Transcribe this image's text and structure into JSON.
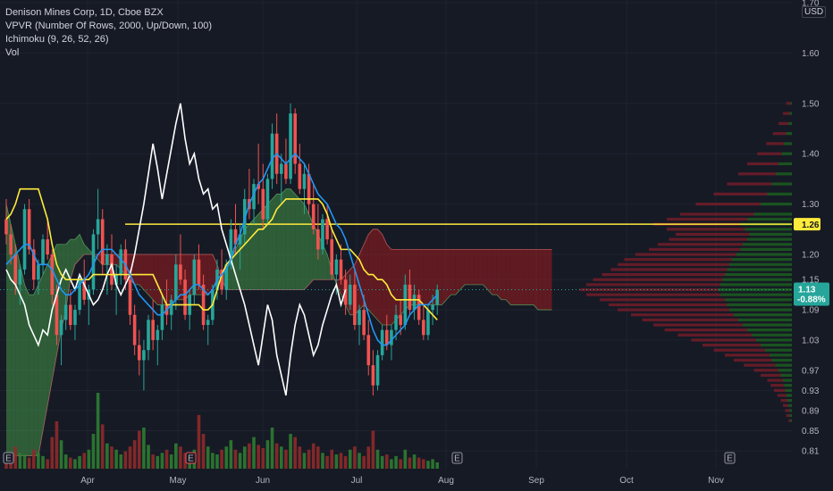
{
  "legend": {
    "title": "Denison Mines Corp, 1D, Cboe BZX",
    "vpvr": "VPVR (Number Of Rows, 2000, Up/Down, 100)",
    "ichimoku": "Ichimoku (9, 26, 52, 26)",
    "vol": "Vol"
  },
  "currency_label": "USD",
  "colors": {
    "background": "#161a25",
    "up": "#26a69a",
    "down": "#ef5350",
    "conversion_line": "#2196f3",
    "base_line": "#ffeb3b",
    "lagging_span": "#ffffff",
    "horizontal_line": "#ffeb3b",
    "cloud_up": "#4caf50",
    "cloud_down": "#b71c1c",
    "vp_up": "#1b5e20",
    "vp_down": "#7f1d2a",
    "grid": "#1f2330"
  },
  "icons": [
    "earnings-marker-icon"
  ],
  "chart_data": {
    "type": "candlestick",
    "symbol": "Denison Mines Corp",
    "interval": "1D",
    "exchange": "Cboe BZX",
    "x_ticks": [
      "Apr",
      "May",
      "Jun",
      "Jul",
      "Aug",
      "Sep",
      "Oct",
      "Nov"
    ],
    "y_ticks": [
      "1.70",
      "1.60",
      "1.50",
      "1.40",
      "1.30",
      "1.20",
      "1.15",
      "1.09",
      "1.03",
      "0.97",
      "0.93",
      "0.89",
      "0.85",
      "0.81"
    ],
    "ylim": [
      0.8,
      1.7
    ],
    "grid": true,
    "last_price": "1.13",
    "last_change": "-0.88%",
    "horizontal_line_price": "1.26",
    "earnings_markers": [
      "E",
      "E",
      "E",
      "E",
      "E"
    ],
    "ohlc": [
      [
        1.27,
        1.31,
        1.22,
        1.24
      ],
      [
        1.24,
        1.26,
        1.18,
        1.2
      ],
      [
        1.2,
        1.22,
        1.12,
        1.14
      ],
      [
        1.14,
        1.18,
        1.1,
        1.17
      ],
      [
        1.17,
        1.3,
        1.16,
        1.29
      ],
      [
        1.29,
        1.31,
        1.2,
        1.21
      ],
      [
        1.21,
        1.23,
        1.13,
        1.15
      ],
      [
        1.15,
        1.19,
        1.12,
        1.18
      ],
      [
        1.18,
        1.24,
        1.16,
        1.23
      ],
      [
        1.23,
        1.27,
        1.19,
        1.2
      ],
      [
        1.2,
        1.21,
        1.1,
        1.12
      ],
      [
        1.12,
        1.14,
        1.02,
        1.04
      ],
      [
        1.04,
        1.08,
        0.98,
        1.07
      ],
      [
        1.07,
        1.12,
        1.05,
        1.1
      ],
      [
        1.1,
        1.13,
        1.05,
        1.06
      ],
      [
        1.06,
        1.1,
        1.03,
        1.09
      ],
      [
        1.09,
        1.16,
        1.08,
        1.15
      ],
      [
        1.15,
        1.19,
        1.1,
        1.11
      ],
      [
        1.11,
        1.14,
        1.06,
        1.13
      ],
      [
        1.13,
        1.25,
        1.12,
        1.24
      ],
      [
        1.24,
        1.33,
        1.21,
        1.27
      ],
      [
        1.27,
        1.29,
        1.16,
        1.18
      ],
      [
        1.18,
        1.22,
        1.12,
        1.2
      ],
      [
        1.2,
        1.24,
        1.13,
        1.14
      ],
      [
        1.14,
        1.18,
        1.08,
        1.16
      ],
      [
        1.16,
        1.22,
        1.14,
        1.21
      ],
      [
        1.21,
        1.23,
        1.13,
        1.15
      ],
      [
        1.15,
        1.17,
        1.06,
        1.08
      ],
      [
        1.08,
        1.1,
        1.0,
        1.02
      ],
      [
        1.02,
        1.05,
        0.96,
        0.99
      ],
      [
        0.99,
        1.03,
        0.93,
        1.01
      ],
      [
        1.01,
        1.08,
        0.99,
        1.07
      ],
      [
        1.07,
        1.11,
        1.01,
        1.03
      ],
      [
        1.03,
        1.06,
        0.98,
        1.05
      ],
      [
        1.05,
        1.12,
        1.03,
        1.1
      ],
      [
        1.1,
        1.15,
        1.06,
        1.08
      ],
      [
        1.08,
        1.12,
        1.05,
        1.11
      ],
      [
        1.11,
        1.2,
        1.09,
        1.18
      ],
      [
        1.18,
        1.24,
        1.14,
        1.15
      ],
      [
        1.15,
        1.17,
        1.07,
        1.08
      ],
      [
        1.08,
        1.13,
        1.05,
        1.12
      ],
      [
        1.12,
        1.2,
        1.1,
        1.19
      ],
      [
        1.19,
        1.22,
        1.13,
        1.14
      ],
      [
        1.14,
        1.16,
        1.05,
        1.06
      ],
      [
        1.06,
        1.08,
        1.02,
        1.07
      ],
      [
        1.07,
        1.14,
        1.06,
        1.13
      ],
      [
        1.13,
        1.19,
        1.11,
        1.17
      ],
      [
        1.17,
        1.21,
        1.12,
        1.13
      ],
      [
        1.13,
        1.19,
        1.11,
        1.18
      ],
      [
        1.18,
        1.27,
        1.17,
        1.25
      ],
      [
        1.25,
        1.3,
        1.2,
        1.22
      ],
      [
        1.22,
        1.26,
        1.17,
        1.24
      ],
      [
        1.24,
        1.33,
        1.22,
        1.31
      ],
      [
        1.31,
        1.37,
        1.27,
        1.29
      ],
      [
        1.29,
        1.35,
        1.26,
        1.34
      ],
      [
        1.34,
        1.42,
        1.3,
        1.33
      ],
      [
        1.33,
        1.38,
        1.25,
        1.27
      ],
      [
        1.27,
        1.36,
        1.26,
        1.35
      ],
      [
        1.35,
        1.46,
        1.33,
        1.44
      ],
      [
        1.44,
        1.48,
        1.34,
        1.36
      ],
      [
        1.36,
        1.4,
        1.3,
        1.38
      ],
      [
        1.38,
        1.43,
        1.34,
        1.35
      ],
      [
        1.35,
        1.5,
        1.34,
        1.48
      ],
      [
        1.48,
        1.49,
        1.36,
        1.38
      ],
      [
        1.38,
        1.42,
        1.32,
        1.33
      ],
      [
        1.33,
        1.38,
        1.28,
        1.36
      ],
      [
        1.36,
        1.38,
        1.28,
        1.3
      ],
      [
        1.3,
        1.34,
        1.24,
        1.25
      ],
      [
        1.25,
        1.3,
        1.19,
        1.21
      ],
      [
        1.21,
        1.28,
        1.2,
        1.27
      ],
      [
        1.27,
        1.3,
        1.22,
        1.23
      ],
      [
        1.23,
        1.25,
        1.15,
        1.16
      ],
      [
        1.16,
        1.2,
        1.12,
        1.19
      ],
      [
        1.19,
        1.22,
        1.14,
        1.15
      ],
      [
        1.15,
        1.17,
        1.08,
        1.1
      ],
      [
        1.1,
        1.16,
        1.09,
        1.14
      ],
      [
        1.14,
        1.17,
        1.05,
        1.06
      ],
      [
        1.06,
        1.1,
        1.02,
        1.09
      ],
      [
        1.09,
        1.12,
        1.03,
        1.04
      ],
      [
        1.04,
        1.07,
        0.96,
        0.98
      ],
      [
        0.98,
        1.01,
        0.92,
        0.94
      ],
      [
        0.94,
        1.01,
        0.93,
        1.0
      ],
      [
        1.0,
        1.06,
        0.99,
        1.05
      ],
      [
        1.05,
        1.08,
        1.01,
        1.02
      ],
      [
        1.02,
        1.06,
        0.99,
        1.05
      ],
      [
        1.05,
        1.1,
        1.03,
        1.08
      ],
      [
        1.08,
        1.11,
        1.04,
        1.06
      ],
      [
        1.06,
        1.16,
        1.05,
        1.14
      ],
      [
        1.14,
        1.17,
        1.08,
        1.09
      ],
      [
        1.09,
        1.14,
        1.07,
        1.12
      ],
      [
        1.12,
        1.13,
        1.06,
        1.07
      ],
      [
        1.07,
        1.1,
        1.03,
        1.04
      ],
      [
        1.04,
        1.1,
        1.03,
        1.09
      ],
      [
        1.09,
        1.12,
        1.06,
        1.1
      ],
      [
        1.1,
        1.14,
        1.08,
        1.13
      ]
    ],
    "volume": [
      8,
      6,
      14,
      10,
      9,
      7,
      12,
      10,
      8,
      6,
      20,
      30,
      18,
      9,
      7,
      6,
      8,
      10,
      12,
      22,
      48,
      28,
      16,
      14,
      12,
      9,
      11,
      14,
      18,
      24,
      26,
      15,
      9,
      8,
      10,
      12,
      9,
      16,
      14,
      10,
      8,
      12,
      34,
      22,
      14,
      10,
      9,
      12,
      14,
      18,
      12,
      10,
      14,
      16,
      20,
      15,
      13,
      18,
      26,
      16,
      14,
      12,
      22,
      20,
      14,
      10,
      12,
      16,
      14,
      10,
      8,
      12,
      9,
      10,
      8,
      12,
      14,
      10,
      8,
      14,
      24,
      12,
      8,
      9,
      6,
      8,
      6,
      12,
      7,
      9,
      7,
      6,
      5,
      6,
      4
    ],
    "tenkan": [
      1.18,
      1.19,
      1.2,
      1.21,
      1.22,
      1.22,
      1.2,
      1.18,
      1.18,
      1.18,
      1.17,
      1.15,
      1.13,
      1.12,
      1.12,
      1.13,
      1.14,
      1.15,
      1.16,
      1.18,
      1.2,
      1.21,
      1.21,
      1.21,
      1.2,
      1.19,
      1.18,
      1.16,
      1.14,
      1.12,
      1.11,
      1.1,
      1.09,
      1.08,
      1.08,
      1.09,
      1.1,
      1.11,
      1.12,
      1.12,
      1.13,
      1.14,
      1.14,
      1.13,
      1.12,
      1.13,
      1.15,
      1.16,
      1.17,
      1.19,
      1.22,
      1.24,
      1.27,
      1.3,
      1.32,
      1.34,
      1.35,
      1.37,
      1.39,
      1.4,
      1.39,
      1.38,
      1.39,
      1.4,
      1.39,
      1.38,
      1.36,
      1.34,
      1.32,
      1.31,
      1.3,
      1.28,
      1.26,
      1.25,
      1.23,
      1.2,
      1.17,
      1.14,
      1.11,
      1.08,
      1.05,
      1.03,
      1.02,
      1.02,
      1.03,
      1.04,
      1.05,
      1.06,
      1.08,
      1.09,
      1.1,
      1.1,
      1.1,
      1.11,
      1.12
    ],
    "kijun": [
      1.27,
      1.28,
      1.3,
      1.33,
      1.33,
      1.33,
      1.33,
      1.33,
      1.3,
      1.27,
      1.22,
      1.18,
      1.16,
      1.15,
      1.15,
      1.15,
      1.15,
      1.15,
      1.15,
      1.16,
      1.16,
      1.16,
      1.16,
      1.16,
      1.16,
      1.16,
      1.16,
      1.16,
      1.16,
      1.16,
      1.16,
      1.16,
      1.16,
      1.14,
      1.12,
      1.1,
      1.1,
      1.1,
      1.1,
      1.1,
      1.1,
      1.1,
      1.1,
      1.09,
      1.09,
      1.1,
      1.13,
      1.16,
      1.18,
      1.19,
      1.2,
      1.21,
      1.22,
      1.23,
      1.24,
      1.25,
      1.25,
      1.26,
      1.27,
      1.29,
      1.3,
      1.31,
      1.31,
      1.31,
      1.31,
      1.31,
      1.31,
      1.31,
      1.31,
      1.3,
      1.28,
      1.25,
      1.23,
      1.21,
      1.21,
      1.21,
      1.2,
      1.19,
      1.17,
      1.16,
      1.16,
      1.15,
      1.15,
      1.14,
      1.12,
      1.11,
      1.11,
      1.11,
      1.11,
      1.11,
      1.11,
      1.1,
      1.09,
      1.08,
      1.07
    ],
    "chikou": [
      1.17,
      1.15,
      1.14,
      1.12,
      1.1,
      1.06,
      1.04,
      1.02,
      1.05,
      1.04,
      1.09,
      1.12,
      1.15,
      1.17,
      1.15,
      1.13,
      1.16,
      1.14,
      1.12,
      1.1,
      1.11,
      1.13,
      1.16,
      1.18,
      1.14,
      1.12,
      1.14,
      1.16,
      1.2,
      1.25,
      1.3,
      1.36,
      1.42,
      1.37,
      1.31,
      1.36,
      1.41,
      1.46,
      1.5,
      1.43,
      1.38,
      1.4,
      1.35,
      1.32,
      1.33,
      1.29,
      1.3,
      1.25,
      1.22,
      1.19,
      1.16,
      1.13,
      1.1,
      1.06,
      1.02,
      0.98,
      1.04,
      1.1,
      1.07,
      1.0,
      0.96,
      0.92,
      1.0,
      1.06,
      1.1,
      1.08,
      1.04,
      1.0,
      1.02,
      1.06,
      1.09,
      1.12,
      1.14,
      1.1,
      1.13
    ],
    "senkou_a": [
      1.3,
      1.26,
      1.22,
      1.18,
      1.14,
      1.12,
      1.12,
      1.14,
      1.16,
      1.18,
      1.2,
      1.22,
      1.22,
      1.22,
      1.23,
      1.23,
      1.24,
      1.22,
      1.21,
      1.2,
      1.19,
      1.18,
      1.18,
      1.18,
      1.18,
      1.17,
      1.16,
      1.15,
      1.14,
      1.14,
      1.13,
      1.12,
      1.11,
      1.1,
      1.1,
      1.1,
      1.1,
      1.11,
      1.11,
      1.11,
      1.12,
      1.12,
      1.12,
      1.12,
      1.12,
      1.13,
      1.15,
      1.16,
      1.17,
      1.19,
      1.21,
      1.23,
      1.25,
      1.26,
      1.27,
      1.28,
      1.29,
      1.3,
      1.31,
      1.32,
      1.32,
      1.33,
      1.33,
      1.32,
      1.31,
      1.3,
      1.28,
      1.26,
      1.24,
      1.22,
      1.2,
      1.17,
      1.14,
      1.12,
      1.1,
      1.08,
      1.08,
      1.09,
      1.1,
      1.09,
      1.08,
      1.07,
      1.06,
      1.06,
      1.06,
      1.07,
      1.08,
      1.09,
      1.1,
      1.1,
      1.1,
      1.1,
      1.1,
      1.1,
      1.1,
      1.1,
      1.11,
      1.12,
      1.12,
      1.13,
      1.14,
      1.14,
      1.14,
      1.14,
      1.14,
      1.13,
      1.12,
      1.12,
      1.11,
      1.11,
      1.1,
      1.1,
      1.1,
      1.1,
      1.1,
      1.1,
      1.09,
      1.09,
      1.09,
      1.09
    ],
    "senkou_b": [
      0.8,
      0.8,
      0.8,
      0.8,
      0.8,
      0.8,
      0.8,
      0.8,
      0.85,
      0.9,
      0.95,
      1.0,
      1.05,
      1.09,
      1.15,
      1.18,
      1.19,
      1.2,
      1.2,
      1.2,
      1.2,
      1.2,
      1.2,
      1.2,
      1.2,
      1.2,
      1.2,
      1.2,
      1.2,
      1.2,
      1.2,
      1.2,
      1.2,
      1.2,
      1.2,
      1.2,
      1.2,
      1.2,
      1.2,
      1.2,
      1.2,
      1.2,
      1.2,
      1.2,
      1.2,
      1.2,
      1.18,
      1.15,
      1.13,
      1.13,
      1.13,
      1.13,
      1.13,
      1.13,
      1.13,
      1.13,
      1.13,
      1.13,
      1.13,
      1.13,
      1.13,
      1.13,
      1.13,
      1.13,
      1.13,
      1.13,
      1.14,
      1.15,
      1.15,
      1.15,
      1.15,
      1.15,
      1.15,
      1.15,
      1.16,
      1.17,
      1.18,
      1.2,
      1.22,
      1.24,
      1.25,
      1.25,
      1.24,
      1.22,
      1.21,
      1.21,
      1.21,
      1.21,
      1.21,
      1.21,
      1.21,
      1.21,
      1.21,
      1.21,
      1.21,
      1.21,
      1.21,
      1.21,
      1.21,
      1.21,
      1.21,
      1.21,
      1.21,
      1.21,
      1.21,
      1.21,
      1.21,
      1.21,
      1.21,
      1.21,
      1.21,
      1.21,
      1.21,
      1.21,
      1.21,
      1.21,
      1.21,
      1.21,
      1.21,
      1.21
    ],
    "volume_profile": [
      [
        1.5,
        1,
        4
      ],
      [
        1.48,
        2,
        6
      ],
      [
        1.46,
        3,
        9
      ],
      [
        1.44,
        5,
        12
      ],
      [
        1.42,
        7,
        16
      ],
      [
        1.4,
        9,
        22
      ],
      [
        1.38,
        12,
        28
      ],
      [
        1.36,
        14,
        34
      ],
      [
        1.34,
        18,
        40
      ],
      [
        1.32,
        22,
        48
      ],
      [
        1.3,
        28,
        58
      ],
      [
        1.28,
        34,
        66
      ],
      [
        1.27,
        40,
        72
      ],
      [
        1.26,
        46,
        78
      ],
      [
        1.25,
        42,
        70
      ],
      [
        1.24,
        38,
        66
      ],
      [
        1.23,
        40,
        70
      ],
      [
        1.22,
        44,
        76
      ],
      [
        1.21,
        46,
        82
      ],
      [
        1.2,
        50,
        90
      ],
      [
        1.19,
        54,
        96
      ],
      [
        1.18,
        56,
        100
      ],
      [
        1.17,
        58,
        104
      ],
      [
        1.16,
        60,
        110
      ],
      [
        1.15,
        62,
        116
      ],
      [
        1.14,
        64,
        120
      ],
      [
        1.13,
        66,
        124
      ],
      [
        1.12,
        64,
        120
      ],
      [
        1.11,
        60,
        112
      ],
      [
        1.1,
        58,
        106
      ],
      [
        1.09,
        56,
        100
      ],
      [
        1.08,
        52,
        92
      ],
      [
        1.07,
        48,
        86
      ],
      [
        1.06,
        44,
        80
      ],
      [
        1.05,
        40,
        74
      ],
      [
        1.04,
        36,
        66
      ],
      [
        1.03,
        32,
        58
      ],
      [
        1.02,
        28,
        52
      ],
      [
        1.01,
        24,
        46
      ],
      [
        1.0,
        20,
        40
      ],
      [
        0.99,
        18,
        34
      ],
      [
        0.98,
        15,
        28
      ],
      [
        0.97,
        12,
        22
      ],
      [
        0.96,
        10,
        18
      ],
      [
        0.95,
        8,
        14
      ],
      [
        0.94,
        7,
        12
      ],
      [
        0.93,
        6,
        10
      ],
      [
        0.92,
        5,
        8
      ],
      [
        0.91,
        4,
        6
      ],
      [
        0.9,
        3,
        5
      ],
      [
        0.89,
        2,
        4
      ],
      [
        0.88,
        2,
        3
      ],
      [
        0.87,
        1,
        2
      ]
    ]
  }
}
